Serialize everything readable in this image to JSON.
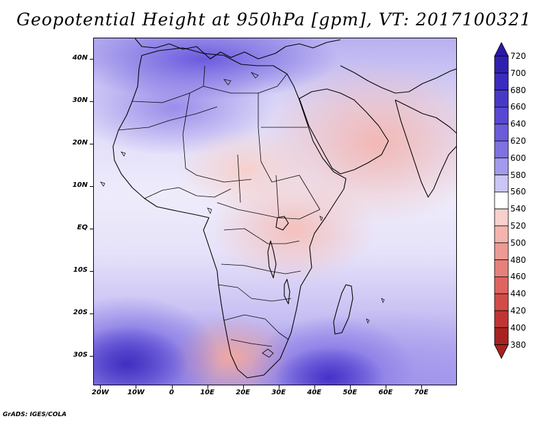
{
  "title": "Geopotential Height at 950hPa [gpm], VT: 2017100321",
  "footer": "GrADS: IGES/COLA",
  "map": {
    "variable": "Geopotential Height",
    "level": "950hPa",
    "units": "gpm",
    "valid_time": "2017100321",
    "lon_range": [
      -22,
      80
    ],
    "lat_range": [
      -37,
      45
    ],
    "lat_ticks": [
      {
        "value": 40,
        "label": "40N"
      },
      {
        "value": 30,
        "label": "30N"
      },
      {
        "value": 20,
        "label": "20N"
      },
      {
        "value": 10,
        "label": "10N"
      },
      {
        "value": 0,
        "label": "EQ"
      },
      {
        "value": -10,
        "label": "10S"
      },
      {
        "value": -20,
        "label": "20S"
      },
      {
        "value": -30,
        "label": "30S"
      }
    ],
    "lon_ticks": [
      {
        "value": -20,
        "label": "20W"
      },
      {
        "value": -10,
        "label": "10W"
      },
      {
        "value": 0,
        "label": "0"
      },
      {
        "value": 10,
        "label": "10E"
      },
      {
        "value": 20,
        "label": "20E"
      },
      {
        "value": 30,
        "label": "30E"
      },
      {
        "value": 40,
        "label": "40E"
      },
      {
        "value": 50,
        "label": "50E"
      },
      {
        "value": 60,
        "label": "60E"
      },
      {
        "value": 70,
        "label": "70E"
      }
    ]
  },
  "colorbar": {
    "levels": [
      {
        "label": "720",
        "color": "#2a18a8"
      },
      {
        "label": "700",
        "color": "#3020b0"
      },
      {
        "label": "680",
        "color": "#3a2cbe"
      },
      {
        "label": "660",
        "color": "#4838c8"
      },
      {
        "label": "640",
        "color": "#5848d2"
      },
      {
        "label": "620",
        "color": "#6a5cda"
      },
      {
        "label": "600",
        "color": "#7e72e0"
      },
      {
        "label": "580",
        "color": "#a29aec"
      },
      {
        "label": "560",
        "color": "#cac6f6"
      },
      {
        "label": "540",
        "color": "#ffffff"
      },
      {
        "label": "520",
        "color": "#f8d0cc"
      },
      {
        "label": "500",
        "color": "#f4b4ae"
      },
      {
        "label": "480",
        "color": "#ee9a94"
      },
      {
        "label": "460",
        "color": "#e6807a"
      },
      {
        "label": "440",
        "color": "#de6460"
      },
      {
        "label": "420",
        "color": "#d24c48"
      },
      {
        "label": "400",
        "color": "#c03434"
      },
      {
        "label": "380",
        "color": "#a82222"
      }
    ],
    "top_color": "#2a18a8",
    "bottom_color": "#a82222"
  }
}
